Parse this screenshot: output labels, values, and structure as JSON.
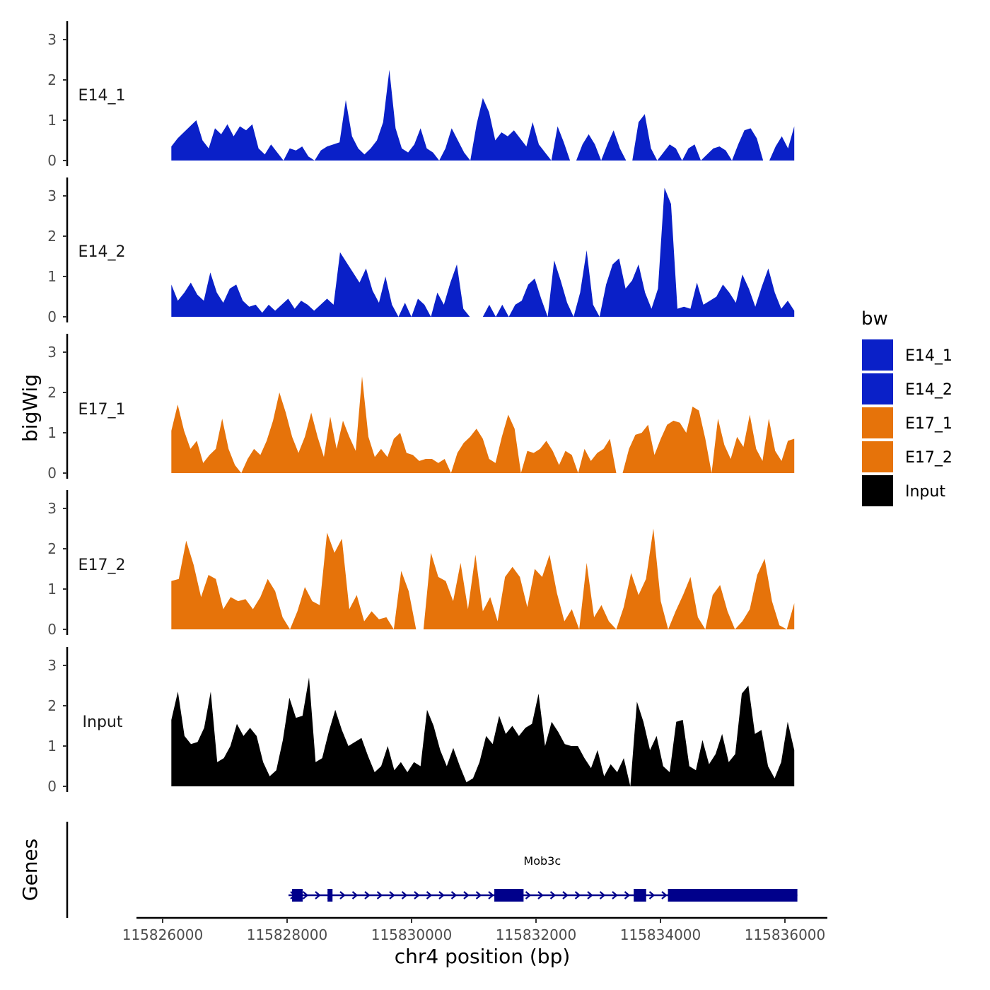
{
  "chart_data": {
    "type": "area",
    "region": "chr4",
    "xlabel": "chr4 position (bp)",
    "ylabel": "bigWig",
    "xlim": [
      115825600,
      115836800
    ],
    "data_range": [
      115826140,
      115836150
    ],
    "x_ticks": [
      115826000,
      115828000,
      115830000,
      115832000,
      115834000,
      115836000
    ],
    "x_tick_labels": [
      "115826000",
      "115828000",
      "115830000",
      "115832000",
      "115834000",
      "115836000"
    ],
    "ylim": [
      0,
      3.4
    ],
    "y_ticks": [
      0,
      1,
      2,
      3
    ],
    "y_tick_labels": [
      "0",
      "1",
      "2",
      "3"
    ],
    "legend": {
      "title": "bw",
      "position": "right",
      "entries": [
        {
          "label": "E14_1",
          "color": "#0a20c8"
        },
        {
          "label": "E14_2",
          "color": "#0a20c8"
        },
        {
          "label": "E17_1",
          "color": "#e6730a"
        },
        {
          "label": "E17_2",
          "color": "#e6730a"
        },
        {
          "label": "Input",
          "color": "#000000"
        }
      ]
    },
    "series": [
      {
        "name": "E14_1",
        "color": "#0a20c8",
        "values": [
          0.35,
          0.55,
          0.7,
          0.85,
          1.0,
          0.5,
          0.3,
          0.8,
          0.65,
          0.9,
          0.6,
          0.85,
          0.75,
          0.9,
          0.3,
          0.15,
          0.4,
          0.2,
          0.0,
          0.3,
          0.25,
          0.35,
          0.1,
          0.0,
          0.25,
          0.35,
          0.4,
          0.45,
          1.5,
          0.6,
          0.3,
          0.15,
          0.3,
          0.5,
          0.95,
          2.25,
          0.8,
          0.3,
          0.2,
          0.4,
          0.8,
          0.3,
          0.2,
          0.0,
          0.3,
          0.8,
          0.5,
          0.2,
          0.0,
          0.9,
          1.55,
          1.2,
          0.5,
          0.7,
          0.6,
          0.75,
          0.55,
          0.35,
          0.95,
          0.4,
          0.2,
          0.0,
          0.85,
          0.45,
          0.0,
          0.0,
          0.4,
          0.65,
          0.4,
          0.0,
          0.4,
          0.75,
          0.3,
          0.0,
          0.0,
          0.95,
          1.15,
          0.3,
          0.0,
          0.2,
          0.4,
          0.3,
          0.0,
          0.3,
          0.4,
          0.0,
          0.15,
          0.3,
          0.35,
          0.25,
          0.0,
          0.4,
          0.75,
          0.8,
          0.55,
          0.0,
          0.0,
          0.35,
          0.6,
          0.3,
          0.85
        ]
      },
      {
        "name": "E14_2",
        "color": "#0a20c8",
        "values": [
          0.8,
          0.4,
          0.6,
          0.85,
          0.55,
          0.4,
          1.1,
          0.6,
          0.35,
          0.7,
          0.8,
          0.4,
          0.25,
          0.3,
          0.1,
          0.3,
          0.15,
          0.3,
          0.45,
          0.2,
          0.4,
          0.3,
          0.15,
          0.3,
          0.45,
          0.3,
          1.6,
          1.35,
          1.1,
          0.85,
          1.2,
          0.65,
          0.35,
          1.0,
          0.3,
          0.0,
          0.35,
          0.0,
          0.45,
          0.3,
          0.0,
          0.6,
          0.3,
          0.85,
          1.3,
          0.2,
          0.0,
          0.0,
          0.0,
          0.3,
          0.0,
          0.3,
          0.0,
          0.3,
          0.4,
          0.8,
          0.95,
          0.45,
          0.0,
          1.4,
          0.9,
          0.35,
          0.0,
          0.6,
          1.65,
          0.3,
          0.0,
          0.8,
          1.3,
          1.45,
          0.7,
          0.9,
          1.3,
          0.6,
          0.2,
          0.7,
          3.2,
          2.8,
          0.2,
          0.25,
          0.2,
          0.85,
          0.3,
          0.4,
          0.5,
          0.8,
          0.6,
          0.35,
          1.05,
          0.7,
          0.25,
          0.75,
          1.2,
          0.6,
          0.2,
          0.4,
          0.15
        ]
      },
      {
        "name": "E17_1",
        "color": "#e6730a",
        "values": [
          1.05,
          1.7,
          1.05,
          0.6,
          0.8,
          0.25,
          0.45,
          0.6,
          1.35,
          0.6,
          0.2,
          0.0,
          0.35,
          0.6,
          0.45,
          0.8,
          1.3,
          2.0,
          1.5,
          0.9,
          0.5,
          0.9,
          1.5,
          0.9,
          0.4,
          1.4,
          0.6,
          1.3,
          0.9,
          0.55,
          2.4,
          0.9,
          0.4,
          0.6,
          0.4,
          0.85,
          1.0,
          0.5,
          0.45,
          0.3,
          0.35,
          0.35,
          0.25,
          0.35,
          0.0,
          0.5,
          0.75,
          0.9,
          1.1,
          0.85,
          0.35,
          0.25,
          0.9,
          1.45,
          1.1,
          0.0,
          0.55,
          0.5,
          0.6,
          0.8,
          0.55,
          0.2,
          0.55,
          0.45,
          0.0,
          0.6,
          0.3,
          0.5,
          0.6,
          0.85,
          0.0,
          0.0,
          0.6,
          0.95,
          1.0,
          1.2,
          0.45,
          0.85,
          1.2,
          1.3,
          1.25,
          1.0,
          1.65,
          1.55,
          0.85,
          0.0,
          1.35,
          0.7,
          0.35,
          0.9,
          0.65,
          1.45,
          0.6,
          0.3,
          1.35,
          0.55,
          0.3,
          0.8,
          0.85
        ]
      },
      {
        "name": "E17_2",
        "color": "#e6730a",
        "values": [
          1.2,
          1.25,
          2.2,
          1.6,
          0.8,
          1.35,
          1.25,
          0.5,
          0.8,
          0.7,
          0.75,
          0.5,
          0.8,
          1.25,
          0.95,
          0.3,
          0.0,
          0.45,
          1.05,
          0.7,
          0.6,
          2.4,
          1.9,
          2.25,
          0.5,
          0.85,
          0.2,
          0.45,
          0.25,
          0.3,
          0.0,
          1.45,
          0.95,
          0.0,
          0.0,
          1.9,
          1.3,
          1.2,
          0.7,
          1.65,
          0.5,
          1.85,
          0.45,
          0.8,
          0.2,
          1.3,
          1.55,
          1.3,
          0.55,
          1.5,
          1.3,
          1.85,
          0.9,
          0.2,
          0.5,
          0.0,
          1.65,
          0.3,
          0.6,
          0.2,
          0.0,
          0.55,
          1.4,
          0.85,
          1.25,
          2.5,
          0.7,
          0.0,
          0.45,
          0.85,
          1.3,
          0.3,
          0.0,
          0.85,
          1.1,
          0.45,
          0.0,
          0.2,
          0.5,
          1.35,
          1.75,
          0.7,
          0.1,
          0.0,
          0.65
        ]
      },
      {
        "name": "Input",
        "color": "#000000",
        "values": [
          1.65,
          2.35,
          1.25,
          1.05,
          1.1,
          1.45,
          2.35,
          0.6,
          0.7,
          1.0,
          1.55,
          1.25,
          1.45,
          1.25,
          0.6,
          0.25,
          0.4,
          1.15,
          2.2,
          1.7,
          1.75,
          2.7,
          0.6,
          0.7,
          1.35,
          1.9,
          1.4,
          1.0,
          1.1,
          1.2,
          0.75,
          0.35,
          0.5,
          1.0,
          0.4,
          0.6,
          0.35,
          0.6,
          0.5,
          1.9,
          1.5,
          0.9,
          0.5,
          0.95,
          0.5,
          0.1,
          0.2,
          0.6,
          1.25,
          1.05,
          1.75,
          1.3,
          1.5,
          1.25,
          1.45,
          1.55,
          2.3,
          1.0,
          1.6,
          1.35,
          1.05,
          1.0,
          1.0,
          0.7,
          0.45,
          0.9,
          0.25,
          0.55,
          0.35,
          0.7,
          0.0,
          2.1,
          1.6,
          0.9,
          1.25,
          0.5,
          0.35,
          1.6,
          1.65,
          0.5,
          0.4,
          1.15,
          0.55,
          0.8,
          1.3,
          0.6,
          0.8,
          2.3,
          2.5,
          1.3,
          1.4,
          0.5,
          0.2,
          0.6,
          1.6,
          0.9
        ]
      }
    ],
    "genes": {
      "title": "Genes",
      "name": "Mob3c",
      "strand": "+",
      "start": 115828000,
      "end": 115836200,
      "exons": [
        [
          115828080,
          115828250
        ],
        [
          115828650,
          115828730
        ],
        [
          115831330,
          115831800
        ],
        [
          115833570,
          115833770
        ],
        [
          115834120,
          115836200
        ]
      ]
    }
  }
}
